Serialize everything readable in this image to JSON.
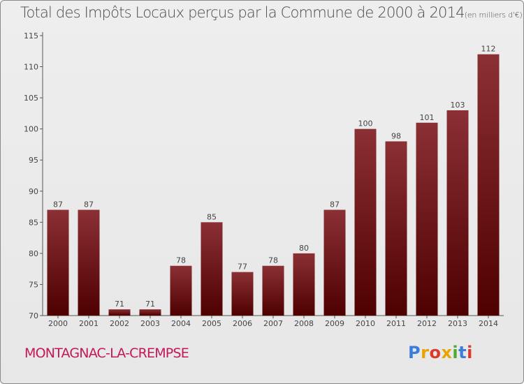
{
  "header": {
    "title": "Total des Impôts Locaux perçus par la Commune de 2000 à 2014",
    "unit": "(en milliers d'€)"
  },
  "footer": {
    "commune": "MONTAGNAC-LA-CREMPSE",
    "logo": "Proxiti",
    "logo_colors": [
      "#3b7dd8",
      "#e8a400",
      "#d93a2b",
      "#e8a400",
      "#52a832",
      "#3b7dd8",
      "#d93a2b"
    ]
  },
  "colors": {
    "bar_top": "#8b3035",
    "bar_bottom": "#4e0000",
    "background": "#eeeeee",
    "commune_text": "#c2185b"
  },
  "chart_data": {
    "type": "bar",
    "title": "Total des Impôts Locaux perçus par la Commune de 2000 à 2014",
    "unit": "(en milliers d'€)",
    "categories": [
      "2000",
      "2001",
      "2002",
      "2003",
      "2004",
      "2005",
      "2006",
      "2007",
      "2008",
      "2009",
      "2010",
      "2011",
      "2012",
      "2013",
      "2014"
    ],
    "values": [
      87,
      87,
      71,
      71,
      78,
      85,
      77,
      78,
      80,
      87,
      100,
      98,
      101,
      103,
      112
    ],
    "ylim": [
      70,
      115
    ],
    "yticks": [
      70,
      75,
      80,
      85,
      90,
      95,
      100,
      105,
      110,
      115
    ],
    "grid": false,
    "data_labels": true
  }
}
